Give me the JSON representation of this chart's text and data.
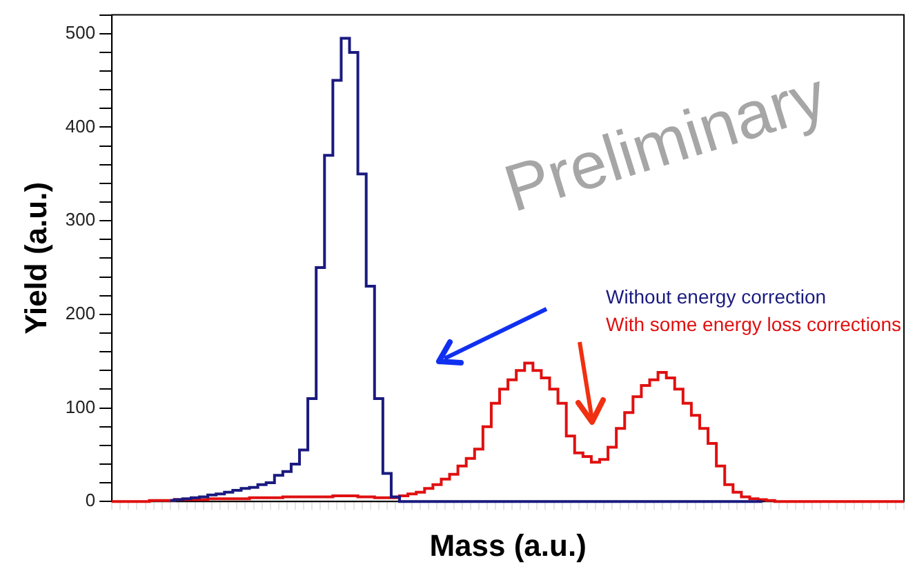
{
  "chart_data": {
    "type": "step",
    "xlabel": "Mass (a.u.)",
    "ylabel": "Yield (a.u.)",
    "annotations": [
      "Preliminary"
    ],
    "categories": [
      null,
      null,
      null,
      null,
      null,
      null,
      null,
      null,
      null,
      null,
      null,
      null,
      null,
      null,
      null,
      null,
      null,
      null,
      null,
      null,
      null,
      null,
      null,
      null,
      null,
      null,
      null,
      null,
      null,
      null,
      null,
      null,
      null,
      null,
      null,
      null,
      null,
      null,
      null,
      null,
      null,
      null,
      null,
      null,
      null,
      null,
      null,
      null,
      null,
      null,
      null,
      null,
      null,
      null,
      null,
      null,
      null,
      null,
      null,
      null,
      null,
      null,
      null,
      null,
      null,
      null,
      null,
      null,
      null,
      null,
      null,
      null,
      null,
      null,
      null,
      null,
      null,
      null,
      null,
      null,
      null,
      null,
      null,
      null,
      null,
      null,
      null,
      null,
      null,
      null,
      null,
      null,
      null,
      null,
      null,
      null
    ],
    "series": [
      {
        "name": "Without energy correction",
        "color": "#1a1a80",
        "values": [
          null,
          null,
          null,
          null,
          null,
          null,
          null,
          1,
          2,
          3,
          4,
          5,
          7,
          8,
          10,
          12,
          14,
          15,
          18,
          20,
          28,
          32,
          40,
          55,
          110,
          250,
          370,
          450,
          495,
          480,
          350,
          230,
          110,
          30,
          5,
          0,
          0,
          0,
          0,
          0,
          0,
          0,
          0,
          0,
          0,
          0,
          0,
          0,
          0,
          0,
          0,
          0,
          0,
          0,
          0,
          0,
          0,
          0,
          0,
          0,
          0,
          0,
          0,
          0,
          0,
          0,
          0,
          0,
          0,
          0,
          0,
          0,
          0,
          0,
          0,
          0,
          0,
          0,
          0,
          null,
          null,
          null,
          null,
          null,
          null,
          null,
          null,
          null,
          null,
          null,
          null,
          null,
          null,
          null,
          null,
          null
        ]
      },
      {
        "name": "With some energy loss corrections",
        "color": "#e01010",
        "values": [
          0,
          0,
          0,
          0,
          0,
          1,
          1,
          1,
          2,
          2,
          2,
          2,
          3,
          3,
          3,
          3,
          3,
          4,
          4,
          4,
          4,
          5,
          5,
          5,
          5,
          5,
          5,
          6,
          6,
          6,
          5,
          5,
          4,
          4,
          4,
          6,
          8,
          10,
          14,
          18,
          24,
          29,
          38,
          46,
          56,
          80,
          105,
          120,
          130,
          140,
          148,
          140,
          132,
          120,
          105,
          70,
          52,
          48,
          42,
          45,
          58,
          78,
          95,
          112,
          124,
          130,
          138,
          132,
          120,
          105,
          92,
          78,
          62,
          38,
          18,
          10,
          5,
          3,
          2,
          1,
          0,
          0,
          0,
          0,
          0,
          0,
          0,
          0,
          0,
          0,
          0,
          0,
          0,
          0,
          0,
          0
        ]
      }
    ],
    "ylim": [
      0,
      520
    ],
    "yticks": [
      0,
      {
        "value": 20,
        "label": null
      },
      {
        "value": 40,
        "label": null
      },
      {
        "value": 60,
        "label": null
      },
      {
        "value": 80,
        "label": null
      },
      100,
      {
        "value": 120,
        "label": null
      },
      {
        "value": 140,
        "label": null
      },
      {
        "value": 160,
        "label": null
      },
      {
        "value": 180,
        "label": null
      },
      200,
      {
        "value": 220,
        "label": null
      },
      {
        "value": 240,
        "label": null
      },
      {
        "value": 260,
        "label": null
      },
      {
        "value": 280,
        "label": null
      },
      300,
      {
        "value": 320,
        "label": null
      },
      {
        "value": 340,
        "label": null
      },
      {
        "value": 360,
        "label": null
      },
      {
        "value": 380,
        "label": null
      },
      400,
      {
        "value": 420,
        "label": null
      },
      {
        "value": 440,
        "label": null
      },
      {
        "value": 460,
        "label": null
      },
      {
        "value": 480,
        "label": null
      },
      500,
      {
        "value": 520,
        "label": null
      }
    ],
    "tick_labels": "y",
    "grid": false,
    "legend": "right"
  }
}
